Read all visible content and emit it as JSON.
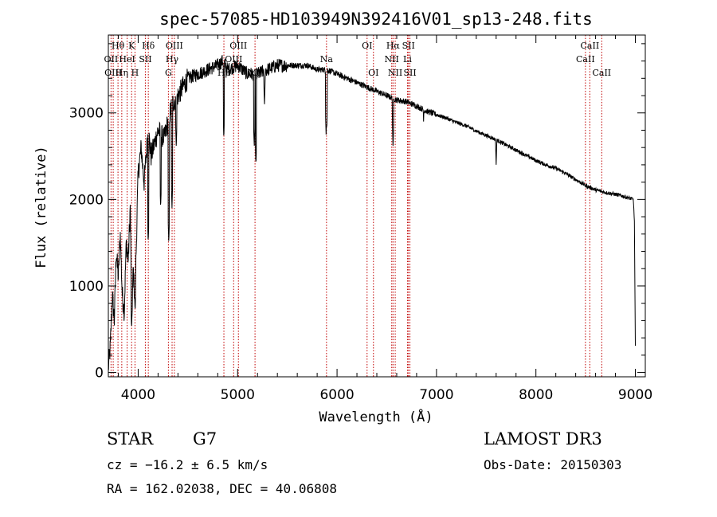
{
  "chart_data": {
    "type": "line",
    "title": "spec-57085-HD103949N392416V01_sp13-248.fits",
    "xlabel": "Wavelength (Å)",
    "ylabel": "Flux (relative)",
    "xlim": [
      3700,
      9100
    ],
    "ylim": [
      -50,
      3900
    ],
    "xticks": [
      4000,
      5000,
      6000,
      7000,
      8000,
      9000
    ],
    "yticks": [
      0,
      1000,
      2000,
      3000
    ],
    "grid": false,
    "spectrum_anchors": [
      [
        3700,
        50
      ],
      [
        3720,
        300
      ],
      [
        3740,
        900
      ],
      [
        3760,
        600
      ],
      [
        3780,
        1400
      ],
      [
        3800,
        1100
      ],
      [
        3820,
        1600
      ],
      [
        3840,
        900
      ],
      [
        3860,
        700
      ],
      [
        3880,
        1500
      ],
      [
        3900,
        1300
      ],
      [
        3920,
        1900
      ],
      [
        3935,
        600
      ],
      [
        3950,
        1200
      ],
      [
        3968,
        800
      ],
      [
        3990,
        1900
      ],
      [
        4000,
        2300
      ],
      [
        4030,
        2600
      ],
      [
        4060,
        2200
      ],
      [
        4100,
        2800
      ],
      [
        4130,
        2500
      ],
      [
        4200,
        2800
      ],
      [
        4260,
        2700
      ],
      [
        4300,
        2900
      ],
      [
        4340,
        3100
      ],
      [
        4400,
        3200
      ],
      [
        4450,
        3300
      ],
      [
        4500,
        3400
      ],
      [
        4600,
        3450
      ],
      [
        4700,
        3500
      ],
      [
        4800,
        3550
      ],
      [
        4850,
        3600
      ],
      [
        4900,
        3500
      ],
      [
        5000,
        3550
      ],
      [
        5100,
        3450
      ],
      [
        5200,
        3450
      ],
      [
        5300,
        3500
      ],
      [
        5400,
        3550
      ],
      [
        5500,
        3550
      ],
      [
        5600,
        3550
      ],
      [
        5700,
        3550
      ],
      [
        5800,
        3500
      ],
      [
        5900,
        3500
      ],
      [
        6000,
        3450
      ],
      [
        6100,
        3400
      ],
      [
        6200,
        3350
      ],
      [
        6300,
        3300
      ],
      [
        6400,
        3250
      ],
      [
        6500,
        3200
      ],
      [
        6600,
        3150
      ],
      [
        6700,
        3130
      ],
      [
        6800,
        3080
      ],
      [
        6900,
        3020
      ],
      [
        7000,
        2980
      ],
      [
        7100,
        2940
      ],
      [
        7200,
        2890
      ],
      [
        7300,
        2850
      ],
      [
        7400,
        2790
      ],
      [
        7500,
        2740
      ],
      [
        7600,
        2690
      ],
      [
        7700,
        2630
      ],
      [
        7800,
        2570
      ],
      [
        7900,
        2510
      ],
      [
        8000,
        2450
      ],
      [
        8100,
        2400
      ],
      [
        8200,
        2360
      ],
      [
        8300,
        2300
      ],
      [
        8400,
        2230
      ],
      [
        8500,
        2160
      ],
      [
        8600,
        2110
      ],
      [
        8700,
        2080
      ],
      [
        8800,
        2060
      ],
      [
        8900,
        2030
      ],
      [
        8980,
        2000
      ],
      [
        8990,
        1750
      ],
      [
        9000,
        300
      ]
    ],
    "spectrum_dips": [
      [
        3934,
        500
      ],
      [
        3969,
        700
      ],
      [
        4101,
        1500
      ],
      [
        4226,
        1900
      ],
      [
        4308,
        1500
      ],
      [
        4340,
        1900
      ],
      [
        4383,
        2600
      ],
      [
        4861,
        2700
      ],
      [
        5167,
        2600
      ],
      [
        5184,
        2400
      ],
      [
        5270,
        3100
      ],
      [
        5890,
        2750
      ],
      [
        5896,
        2800
      ],
      [
        6563,
        2600
      ],
      [
        6870,
        2900
      ],
      [
        7600,
        2400
      ]
    ],
    "lines": [
      {
        "name": "Hθ",
        "wavelength": 3797,
        "row": 0
      },
      {
        "name": "OII",
        "wavelength": 3727,
        "row": 1
      },
      {
        "name": "OIII",
        "wavelength": 3749,
        "row": 2
      },
      {
        "name": "Hη",
        "wavelength": 3835,
        "row": 2
      },
      {
        "name": "K",
        "wavelength": 3934,
        "row": 0
      },
      {
        "name": "HeI",
        "wavelength": 3889,
        "row": 1
      },
      {
        "name": "H",
        "wavelength": 3968,
        "row": 2
      },
      {
        "name": "SII",
        "wavelength": 4072,
        "row": 1
      },
      {
        "name": "Hδ",
        "wavelength": 4102,
        "row": 0
      },
      {
        "name": "OIII",
        "wavelength": 4364,
        "row": 0
      },
      {
        "name": "Hγ",
        "wavelength": 4341,
        "row": 1
      },
      {
        "name": "G",
        "wavelength": 4304,
        "row": 2
      },
      {
        "name": "Hβ",
        "wavelength": 4862,
        "row": 2
      },
      {
        "name": "OIII",
        "wavelength": 5008,
        "row": 0
      },
      {
        "name": "OIII",
        "wavelength": 4960,
        "row": 1
      },
      {
        "name": "Mg",
        "wavelength": 5175,
        "row": 2
      },
      {
        "name": "Na",
        "wavelength": 5894,
        "row": 1
      },
      {
        "name": "OI",
        "wavelength": 6302,
        "row": 0
      },
      {
        "name": "OI",
        "wavelength": 6366,
        "row": 2
      },
      {
        "name": "Hα",
        "wavelength": 6563,
        "row": 0
      },
      {
        "name": "NII",
        "wavelength": 6550,
        "row": 1
      },
      {
        "name": "NII",
        "wavelength": 6585,
        "row": 2
      },
      {
        "name": "SII",
        "wavelength": 6718,
        "row": 0
      },
      {
        "name": "Li",
        "wavelength": 6708,
        "row": 1
      },
      {
        "name": "SII",
        "wavelength": 6733,
        "row": 2
      },
      {
        "name": "CaII",
        "wavelength": 8542,
        "row": 0
      },
      {
        "name": "CaII",
        "wavelength": 8498,
        "row": 1
      },
      {
        "name": "CaII",
        "wavelength": 8662,
        "row": 2
      }
    ],
    "line_color": "#c00000"
  },
  "footer": {
    "object_type": "STAR",
    "subclass": "G7",
    "cz": "cz = −16.2 ± 6.5 km/s",
    "coords": "RA = 162.02038, DEC =  40.06808",
    "survey": "LAMOST DR3",
    "obs_date": "Obs-Date: 20150303"
  }
}
